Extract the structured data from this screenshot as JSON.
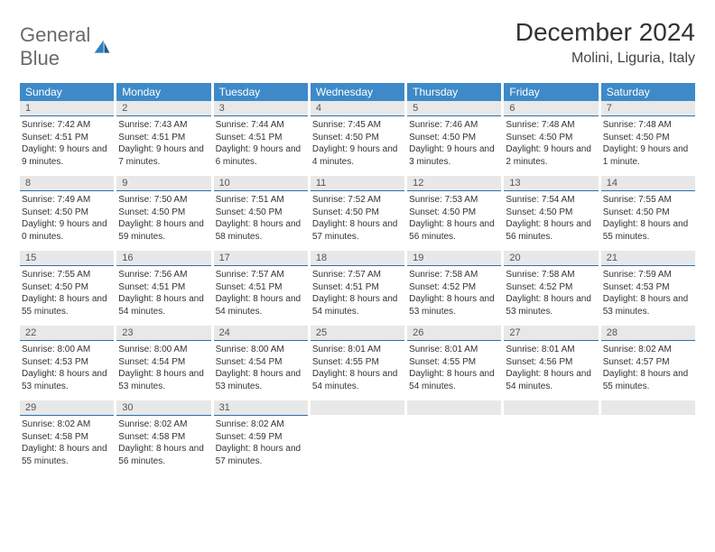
{
  "logo": {
    "word1": "General",
    "word2": "Blue"
  },
  "title": "December 2024",
  "location": "Molini, Liguria, Italy",
  "day_header_color": "#3e8ac8",
  "day_number_bg": "#e8e8e8",
  "accent_line": "#2f6fa8",
  "weekdays": [
    "Sunday",
    "Monday",
    "Tuesday",
    "Wednesday",
    "Thursday",
    "Friday",
    "Saturday"
  ],
  "days": [
    {
      "n": "1",
      "sunrise": "7:42 AM",
      "sunset": "4:51 PM",
      "daylight": "9 hours and 9 minutes."
    },
    {
      "n": "2",
      "sunrise": "7:43 AM",
      "sunset": "4:51 PM",
      "daylight": "9 hours and 7 minutes."
    },
    {
      "n": "3",
      "sunrise": "7:44 AM",
      "sunset": "4:51 PM",
      "daylight": "9 hours and 6 minutes."
    },
    {
      "n": "4",
      "sunrise": "7:45 AM",
      "sunset": "4:50 PM",
      "daylight": "9 hours and 4 minutes."
    },
    {
      "n": "5",
      "sunrise": "7:46 AM",
      "sunset": "4:50 PM",
      "daylight": "9 hours and 3 minutes."
    },
    {
      "n": "6",
      "sunrise": "7:48 AM",
      "sunset": "4:50 PM",
      "daylight": "9 hours and 2 minutes."
    },
    {
      "n": "7",
      "sunrise": "7:48 AM",
      "sunset": "4:50 PM",
      "daylight": "9 hours and 1 minute."
    },
    {
      "n": "8",
      "sunrise": "7:49 AM",
      "sunset": "4:50 PM",
      "daylight": "9 hours and 0 minutes."
    },
    {
      "n": "9",
      "sunrise": "7:50 AM",
      "sunset": "4:50 PM",
      "daylight": "8 hours and 59 minutes."
    },
    {
      "n": "10",
      "sunrise": "7:51 AM",
      "sunset": "4:50 PM",
      "daylight": "8 hours and 58 minutes."
    },
    {
      "n": "11",
      "sunrise": "7:52 AM",
      "sunset": "4:50 PM",
      "daylight": "8 hours and 57 minutes."
    },
    {
      "n": "12",
      "sunrise": "7:53 AM",
      "sunset": "4:50 PM",
      "daylight": "8 hours and 56 minutes."
    },
    {
      "n": "13",
      "sunrise": "7:54 AM",
      "sunset": "4:50 PM",
      "daylight": "8 hours and 56 minutes."
    },
    {
      "n": "14",
      "sunrise": "7:55 AM",
      "sunset": "4:50 PM",
      "daylight": "8 hours and 55 minutes."
    },
    {
      "n": "15",
      "sunrise": "7:55 AM",
      "sunset": "4:50 PM",
      "daylight": "8 hours and 55 minutes."
    },
    {
      "n": "16",
      "sunrise": "7:56 AM",
      "sunset": "4:51 PM",
      "daylight": "8 hours and 54 minutes."
    },
    {
      "n": "17",
      "sunrise": "7:57 AM",
      "sunset": "4:51 PM",
      "daylight": "8 hours and 54 minutes."
    },
    {
      "n": "18",
      "sunrise": "7:57 AM",
      "sunset": "4:51 PM",
      "daylight": "8 hours and 54 minutes."
    },
    {
      "n": "19",
      "sunrise": "7:58 AM",
      "sunset": "4:52 PM",
      "daylight": "8 hours and 53 minutes."
    },
    {
      "n": "20",
      "sunrise": "7:58 AM",
      "sunset": "4:52 PM",
      "daylight": "8 hours and 53 minutes."
    },
    {
      "n": "21",
      "sunrise": "7:59 AM",
      "sunset": "4:53 PM",
      "daylight": "8 hours and 53 minutes."
    },
    {
      "n": "22",
      "sunrise": "8:00 AM",
      "sunset": "4:53 PM",
      "daylight": "8 hours and 53 minutes."
    },
    {
      "n": "23",
      "sunrise": "8:00 AM",
      "sunset": "4:54 PM",
      "daylight": "8 hours and 53 minutes."
    },
    {
      "n": "24",
      "sunrise": "8:00 AM",
      "sunset": "4:54 PM",
      "daylight": "8 hours and 53 minutes."
    },
    {
      "n": "25",
      "sunrise": "8:01 AM",
      "sunset": "4:55 PM",
      "daylight": "8 hours and 54 minutes."
    },
    {
      "n": "26",
      "sunrise": "8:01 AM",
      "sunset": "4:55 PM",
      "daylight": "8 hours and 54 minutes."
    },
    {
      "n": "27",
      "sunrise": "8:01 AM",
      "sunset": "4:56 PM",
      "daylight": "8 hours and 54 minutes."
    },
    {
      "n": "28",
      "sunrise": "8:02 AM",
      "sunset": "4:57 PM",
      "daylight": "8 hours and 55 minutes."
    },
    {
      "n": "29",
      "sunrise": "8:02 AM",
      "sunset": "4:58 PM",
      "daylight": "8 hours and 55 minutes."
    },
    {
      "n": "30",
      "sunrise": "8:02 AM",
      "sunset": "4:58 PM",
      "daylight": "8 hours and 56 minutes."
    },
    {
      "n": "31",
      "sunrise": "8:02 AM",
      "sunset": "4:59 PM",
      "daylight": "8 hours and 57 minutes."
    }
  ],
  "trailing_blanks": 4,
  "labels": {
    "sunrise": "Sunrise:",
    "sunset": "Sunset:",
    "daylight": "Daylight:"
  }
}
